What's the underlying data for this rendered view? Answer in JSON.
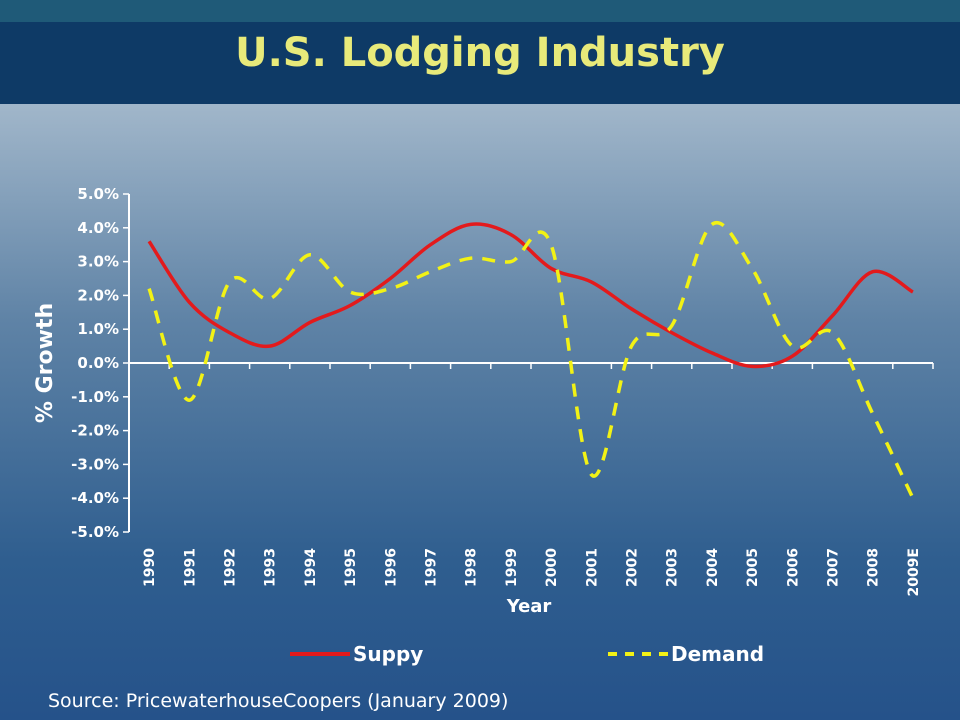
{
  "slide": {
    "title": "U.S. Lodging Industry",
    "source": "Source: PricewaterhouseCoopers (January 2009)"
  },
  "chart_data": {
    "type": "line",
    "xlabel": "Year",
    "ylabel": "% Growth",
    "categories": [
      "1990",
      "1991",
      "1992",
      "1993",
      "1994",
      "1995",
      "1996",
      "1997",
      "1998",
      "1999",
      "2000",
      "2001",
      "2002",
      "2003",
      "2004",
      "2005",
      "2006",
      "2007",
      "2008",
      "2009E"
    ],
    "ylim": [
      -5.0,
      5.0
    ],
    "yticks": [
      "5.0%",
      "4.0%",
      "3.0%",
      "2.0%",
      "1.0%",
      "0.0%",
      "-1.0%",
      "-2.0%",
      "-3.0%",
      "-4.0%",
      "-5.0%"
    ],
    "grid": false,
    "legend": "bottom",
    "series": [
      {
        "name": "Suppy",
        "style": "solid",
        "color": "#e31a1c",
        "values": [
          3.6,
          1.8,
          0.9,
          0.5,
          1.2,
          1.7,
          2.5,
          3.5,
          4.1,
          3.8,
          2.8,
          2.4,
          1.6,
          0.9,
          0.3,
          -0.1,
          0.2,
          1.4,
          2.7,
          2.1
        ]
      },
      {
        "name": "Demand",
        "style": "dashed",
        "color": "#f2f215",
        "values": [
          2.2,
          -1.1,
          2.4,
          1.9,
          3.2,
          2.1,
          2.2,
          2.7,
          3.1,
          3.0,
          3.5,
          -3.3,
          0.5,
          1.1,
          4.1,
          2.8,
          0.5,
          0.9,
          -1.5,
          -4.0
        ]
      }
    ]
  }
}
